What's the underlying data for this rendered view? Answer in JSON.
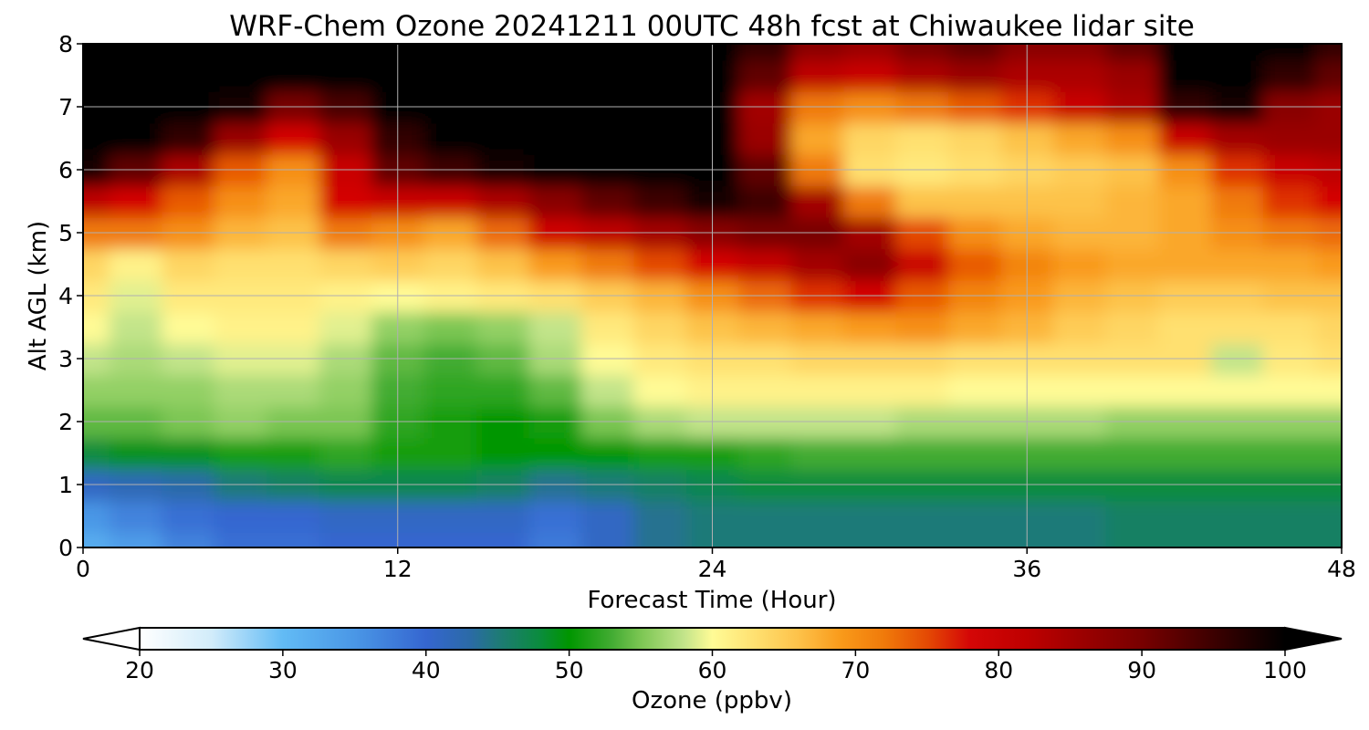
{
  "chart_data": {
    "type": "heatmap",
    "title": "WRF-Chem Ozone  20241211 00UTC 48h fcst at Chiwaukee lidar site",
    "xlabel": "Forecast Time (Hour)",
    "ylabel": "Alt AGL (km)",
    "xlim": [
      0,
      48
    ],
    "ylim": [
      0,
      8
    ],
    "xticks": [
      "0",
      "12",
      "24",
      "36",
      "48"
    ],
    "yticks": [
      "0",
      "1",
      "2",
      "3",
      "4",
      "5",
      "6",
      "7",
      "8"
    ],
    "grid": true,
    "colorbar": {
      "label": "Ozone  (ppbv)",
      "ticks": [
        "20",
        "30",
        "40",
        "50",
        "60",
        "70",
        "80",
        "90",
        "100"
      ],
      "range": [
        20,
        100
      ],
      "extend": "both",
      "placement": "bottom",
      "colors": {
        "20": "#ffffff",
        "25": "#d2ecfa",
        "30": "#62bbf5",
        "35": "#4a97e6",
        "40": "#3566d0",
        "43": "#2b6aa8",
        "45": "#1f7a78",
        "48": "#0a8c3c",
        "50": "#009600",
        "53": "#43ac33",
        "55": "#7cc653",
        "58": "#c2e48a",
        "60": "#fffb96",
        "63": "#ffe070",
        "66": "#fdc24a",
        "69": "#f99a1a",
        "72": "#f07a0a",
        "75": "#e44a04",
        "78": "#d40606",
        "82": "#be0000",
        "86": "#9a0000",
        "90": "#780000",
        "95": "#3c0000",
        "100": "#000000"
      }
    },
    "x": [
      0,
      2,
      4,
      6,
      8,
      10,
      12,
      14,
      16,
      18,
      20,
      22,
      24,
      26,
      28,
      30,
      32,
      34,
      36,
      38,
      40,
      42,
      44,
      46,
      48
    ],
    "y": [
      0,
      0.5,
      1,
      1.5,
      2,
      2.5,
      3,
      3.5,
      4,
      4.5,
      5,
      5.5,
      6,
      6.5,
      7,
      7.5,
      8
    ],
    "z": [
      [
        32,
        34,
        37,
        39,
        39,
        40,
        40,
        40,
        40,
        38,
        41,
        44,
        45,
        45,
        45,
        45,
        45,
        45,
        45,
        45,
        46,
        46,
        46,
        46,
        46
      ],
      [
        35,
        37,
        39,
        40,
        40,
        41,
        41,
        41,
        41,
        39,
        41,
        44,
        45,
        45,
        45,
        45,
        45,
        45,
        45,
        45,
        46,
        46,
        46,
        46,
        46
      ],
      [
        41,
        42,
        43,
        45,
        46,
        47,
        47,
        47,
        46,
        44,
        45,
        46,
        47,
        48,
        48,
        48,
        48,
        48,
        48,
        48,
        48,
        48,
        48,
        48,
        48
      ],
      [
        48,
        49,
        49,
        51,
        51,
        52,
        51,
        51,
        50,
        50,
        50,
        51,
        51,
        52,
        53,
        53,
        53,
        53,
        53,
        53,
        53,
        53,
        53,
        53,
        53
      ],
      [
        54,
        54,
        55,
        56,
        55,
        55,
        52,
        51,
        50,
        51,
        55,
        57,
        58,
        58,
        58,
        58,
        57,
        57,
        57,
        57,
        56,
        56,
        56,
        56,
        56
      ],
      [
        56,
        56,
        56,
        57,
        57,
        56,
        53,
        52,
        52,
        54,
        58,
        60,
        61,
        61,
        61,
        61,
        61,
        60,
        60,
        60,
        60,
        60,
        60,
        60,
        60
      ],
      [
        58,
        57,
        58,
        59,
        59,
        57,
        54,
        53,
        54,
        57,
        60,
        62,
        63,
        63,
        64,
        64,
        64,
        63,
        63,
        63,
        63,
        63,
        58,
        62,
        63
      ],
      [
        60,
        58,
        60,
        61,
        61,
        59,
        56,
        55,
        56,
        58,
        62,
        64,
        66,
        67,
        68,
        69,
        70,
        68,
        67,
        65,
        64,
        63,
        63,
        63,
        64
      ],
      [
        62,
        59,
        62,
        62,
        62,
        61,
        60,
        61,
        62,
        63,
        65,
        67,
        70,
        73,
        76,
        78,
        74,
        71,
        69,
        67,
        66,
        65,
        65,
        66,
        66
      ],
      [
        64,
        61,
        64,
        63,
        63,
        64,
        65,
        64,
        66,
        69,
        72,
        75,
        78,
        81,
        85,
        88,
        80,
        74,
        71,
        69,
        68,
        68,
        68,
        68,
        69
      ],
      [
        72,
        72,
        70,
        67,
        66,
        72,
        70,
        68,
        73,
        79,
        82,
        85,
        88,
        90,
        90,
        85,
        75,
        70,
        68,
        67,
        67,
        68,
        70,
        72,
        73
      ],
      [
        82,
        78,
        74,
        70,
        68,
        78,
        80,
        80,
        84,
        88,
        92,
        95,
        98,
        95,
        85,
        72,
        66,
        66,
        66,
        66,
        67,
        68,
        72,
        76,
        78
      ],
      [
        98,
        92,
        84,
        74,
        70,
        80,
        92,
        95,
        98,
        100,
        100,
        100,
        100,
        92,
        72,
        63,
        62,
        63,
        64,
        65,
        66,
        70,
        76,
        80,
        82
      ],
      [
        100,
        100,
        96,
        86,
        78,
        86,
        96,
        100,
        100,
        100,
        100,
        100,
        100,
        86,
        68,
        64,
        63,
        64,
        66,
        68,
        70,
        80,
        85,
        86,
        86
      ],
      [
        100,
        100,
        100,
        98,
        90,
        94,
        100,
        100,
        100,
        100,
        100,
        100,
        100,
        85,
        72,
        70,
        72,
        74,
        76,
        80,
        84,
        96,
        98,
        88,
        86
      ],
      [
        100,
        100,
        100,
        100,
        100,
        100,
        100,
        100,
        100,
        100,
        100,
        100,
        100,
        92,
        82,
        80,
        84,
        86,
        84,
        84,
        86,
        100,
        100,
        96,
        92
      ],
      [
        100,
        100,
        100,
        100,
        100,
        100,
        100,
        100,
        100,
        100,
        100,
        100,
        100,
        96,
        88,
        86,
        90,
        92,
        88,
        88,
        92,
        100,
        100,
        100,
        96
      ]
    ]
  }
}
